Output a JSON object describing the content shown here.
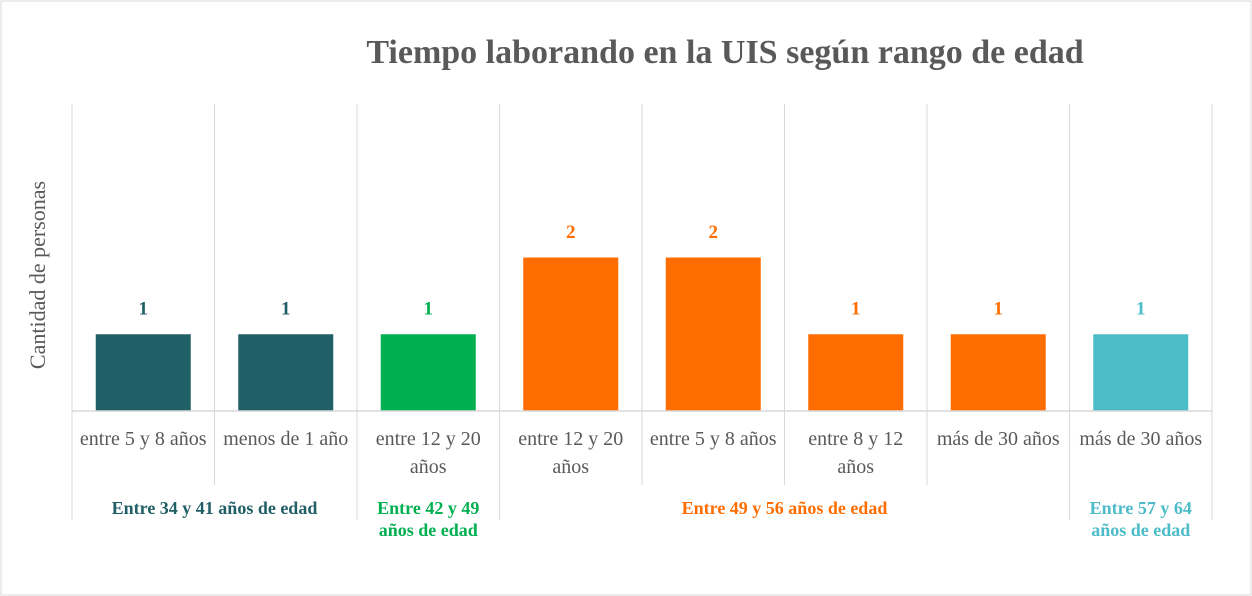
{
  "chart_data": {
    "type": "bar",
    "title": "Tiempo laborando en la UIS según rango de edad",
    "y_label": "Cantidad de personas",
    "ylim": [
      0,
      4
    ],
    "series": [
      {
        "name": "Entre 34 y 41 años de edad",
        "color": "#215f66",
        "categories": [
          "entre 5 y 8 años",
          "menos de 1 año"
        ],
        "values": [
          1,
          1
        ]
      },
      {
        "name": "Entre 42 y 49 años de edad",
        "color": "#00b050",
        "categories": [
          "entre 12 y 20 años"
        ],
        "values": [
          1
        ]
      },
      {
        "name": "Entre 49 y 56 años de edad",
        "color": "#ff6d00",
        "categories": [
          "entre 12 y 20 años",
          "entre 5 y 8 años",
          "entre 8 y 12 años",
          "más de 30 años"
        ],
        "values": [
          2,
          2,
          1,
          1
        ]
      },
      {
        "name": "Entre 57 y 64 años de edad",
        "color": "#4bbcc8",
        "categories": [
          "más de 30 años"
        ],
        "values": [
          1
        ]
      }
    ]
  }
}
